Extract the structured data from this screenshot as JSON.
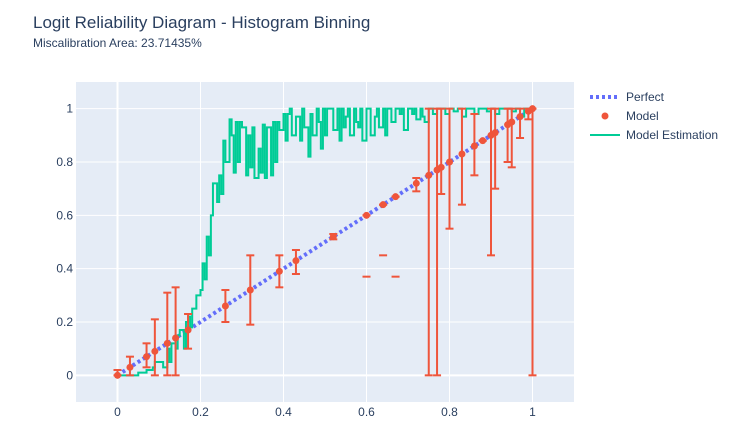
{
  "chart_data": {
    "type": "line",
    "title": "Logit Reliability Diagram - Histogram Binning",
    "subtitle": "Miscalibration Area: 23.71435%",
    "xlim": [
      -0.1,
      1.1
    ],
    "ylim": [
      -0.1,
      1.1
    ],
    "x_ticks": [
      0,
      0.2,
      0.4,
      0.6,
      0.8,
      1
    ],
    "y_ticks": [
      0,
      0.2,
      0.4,
      0.6,
      0.8,
      1
    ],
    "x_tick_labels": [
      "0",
      "0.2",
      "0.4",
      "0.6",
      "0.8",
      "1"
    ],
    "y_tick_labels": [
      "0",
      "0.2",
      "0.4",
      "0.6",
      "0.8",
      "1"
    ],
    "grid": true,
    "legend_position": "top-right",
    "colors": {
      "plot_bg": "#e5ecf6",
      "grid": "#ffffff",
      "perfect": "#636efa",
      "model": "#ef553b",
      "estimation": "#00cc96",
      "text": "#2a3f5f"
    },
    "series": [
      {
        "name": "Perfect",
        "style": "dotted-line",
        "x": [
          0,
          1
        ],
        "y": [
          0,
          1
        ]
      },
      {
        "name": "Model",
        "style": "markers-with-error-bars",
        "points": [
          {
            "x": 0.0,
            "y": 0.0,
            "lo": 0.0,
            "hi": 0.02
          },
          {
            "x": 0.03,
            "y": 0.03,
            "lo": 0.0,
            "hi": 0.07
          },
          {
            "x": 0.07,
            "y": 0.07,
            "lo": 0.03,
            "hi": 0.12
          },
          {
            "x": 0.09,
            "y": 0.09,
            "lo": 0.0,
            "hi": 0.21
          },
          {
            "x": 0.12,
            "y": 0.12,
            "lo": 0.0,
            "hi": 0.31
          },
          {
            "x": 0.14,
            "y": 0.14,
            "lo": 0.0,
            "hi": 0.33
          },
          {
            "x": 0.17,
            "y": 0.17,
            "lo": 0.1,
            "hi": 0.23
          },
          {
            "x": 0.26,
            "y": 0.26,
            "lo": 0.2,
            "hi": 0.32
          },
          {
            "x": 0.32,
            "y": 0.32,
            "lo": 0.19,
            "hi": 0.45
          },
          {
            "x": 0.39,
            "y": 0.39,
            "lo": 0.33,
            "hi": 0.45
          },
          {
            "x": 0.43,
            "y": 0.43,
            "lo": 0.38,
            "hi": 0.47
          },
          {
            "x": 0.52,
            "y": 0.52,
            "lo": 0.51,
            "hi": 0.53
          },
          {
            "x": 0.6,
            "y": 0.6,
            "lo": 0.6,
            "hi": 0.6
          },
          {
            "x": 0.64,
            "y": 0.64,
            "lo": 0.64,
            "hi": 0.64
          },
          {
            "x": 0.67,
            "y": 0.67,
            "lo": 0.67,
            "hi": 0.67
          },
          {
            "x": 0.72,
            "y": 0.72,
            "lo": 0.69,
            "hi": 0.74
          },
          {
            "x": 0.75,
            "y": 0.75,
            "lo": 0.0,
            "hi": 1.0
          },
          {
            "x": 0.77,
            "y": 0.77,
            "lo": 0.0,
            "hi": 1.0
          },
          {
            "x": 0.78,
            "y": 0.78,
            "lo": 0.68,
            "hi": 1.0
          },
          {
            "x": 0.8,
            "y": 0.8,
            "lo": 0.55,
            "hi": 1.0
          },
          {
            "x": 0.83,
            "y": 0.83,
            "lo": 0.64,
            "hi": 1.0
          },
          {
            "x": 0.86,
            "y": 0.86,
            "lo": 0.75,
            "hi": 0.98
          },
          {
            "x": 0.88,
            "y": 0.88,
            "lo": 0.88,
            "hi": 0.88
          },
          {
            "x": 0.9,
            "y": 0.9,
            "lo": 0.45,
            "hi": 1.0
          },
          {
            "x": 0.91,
            "y": 0.91,
            "lo": 0.7,
            "hi": 1.0
          },
          {
            "x": 0.94,
            "y": 0.94,
            "lo": 0.8,
            "hi": 1.0
          },
          {
            "x": 0.95,
            "y": 0.95,
            "lo": 0.78,
            "hi": 1.0
          },
          {
            "x": 0.97,
            "y": 0.97,
            "lo": 0.89,
            "hi": 1.0
          },
          {
            "x": 0.99,
            "y": 0.99,
            "lo": 0.96,
            "hi": 1.0
          },
          {
            "x": 1.0,
            "y": 1.0,
            "lo": 0.0,
            "hi": 1.0
          }
        ],
        "stray_caps": [
          {
            "x": 0.6,
            "y": 0.37
          },
          {
            "x": 0.64,
            "y": 0.45
          },
          {
            "x": 0.67,
            "y": 0.37
          }
        ]
      },
      {
        "name": "Model Estimation",
        "style": "step-line",
        "x": [
          0.0,
          0.05,
          0.07,
          0.085,
          0.09,
          0.11,
          0.12,
          0.125,
          0.13,
          0.14,
          0.145,
          0.15,
          0.16,
          0.165,
          0.17,
          0.175,
          0.18,
          0.19,
          0.2,
          0.205,
          0.21,
          0.215,
          0.22,
          0.225,
          0.23,
          0.24,
          0.245,
          0.25,
          0.255,
          0.26,
          0.27,
          0.275,
          0.28,
          0.285,
          0.29,
          0.295,
          0.3,
          0.31,
          0.315,
          0.32,
          0.325,
          0.33,
          0.34,
          0.345,
          0.35,
          0.355,
          0.36,
          0.37,
          0.375,
          0.38,
          0.385,
          0.39,
          0.4,
          0.405,
          0.41,
          0.415,
          0.42,
          0.43,
          0.44,
          0.445,
          0.45,
          0.46,
          0.465,
          0.47,
          0.48,
          0.485,
          0.49,
          0.495,
          0.5,
          0.505,
          0.51,
          0.52,
          0.53,
          0.535,
          0.54,
          0.545,
          0.55,
          0.555,
          0.56,
          0.57,
          0.575,
          0.58,
          0.585,
          0.59,
          0.6,
          0.61,
          0.62,
          0.625,
          0.63,
          0.64,
          0.645,
          0.65,
          0.66,
          0.67,
          0.68,
          0.685,
          0.69,
          0.7,
          0.71,
          0.715,
          0.72,
          0.73,
          0.735,
          0.74,
          0.75,
          0.76,
          0.77,
          0.78,
          0.79,
          0.8,
          0.81,
          0.82,
          0.83,
          0.84,
          0.85,
          0.86,
          0.87,
          0.88,
          0.89,
          0.9,
          0.91,
          0.92,
          0.93,
          0.94,
          0.95,
          0.96,
          0.97,
          0.98,
          0.99,
          1.0
        ],
        "y": [
          0.0,
          0.01,
          0.02,
          0.03,
          0.05,
          0.03,
          0.1,
          0.05,
          0.12,
          0.1,
          0.15,
          0.17,
          0.1,
          0.2,
          0.22,
          0.18,
          0.25,
          0.3,
          0.32,
          0.42,
          0.36,
          0.52,
          0.45,
          0.6,
          0.72,
          0.65,
          0.75,
          0.68,
          0.88,
          0.8,
          0.96,
          0.9,
          0.76,
          0.95,
          0.8,
          0.95,
          0.93,
          0.75,
          0.9,
          0.78,
          0.93,
          0.74,
          0.85,
          0.76,
          0.94,
          0.74,
          0.93,
          0.75,
          0.95,
          0.8,
          0.95,
          0.92,
          0.98,
          0.88,
          0.98,
          1.0,
          0.9,
          0.97,
          0.88,
          1.0,
          0.93,
          0.82,
          0.98,
          0.9,
          1.0,
          0.95,
          0.85,
          1.0,
          0.9,
          1.0,
          1.0,
          0.92,
          1.0,
          0.88,
          1.0,
          0.93,
          0.97,
          1.0,
          0.9,
          1.0,
          0.95,
          0.93,
          1.0,
          0.88,
          1.0,
          0.9,
          0.97,
          1.0,
          0.93,
          1.0,
          0.9,
          1.0,
          0.95,
          1.0,
          0.98,
          1.0,
          0.92,
          1.0,
          0.98,
          1.0,
          0.96,
          1.0,
          0.97,
          0.95,
          1.0,
          0.98,
          1.0,
          1.0,
          0.98,
          1.0,
          0.99,
          1.0,
          0.97,
          1.0,
          1.0,
          0.98,
          1.0,
          1.0,
          0.99,
          1.0,
          0.98,
          1.0,
          1.0,
          1.0,
          0.99,
          1.0,
          0.97,
          1.0,
          1.0,
          1.0
        ]
      }
    ]
  }
}
